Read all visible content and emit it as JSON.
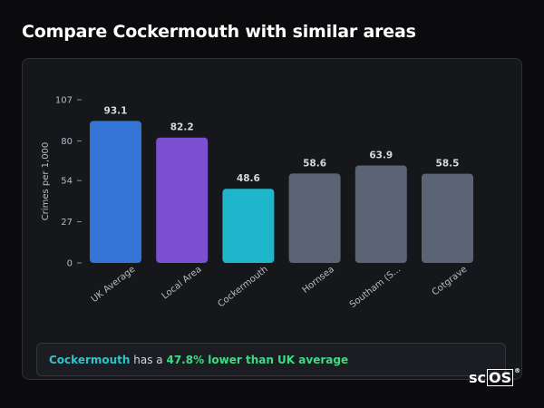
{
  "page": {
    "title": "Compare Cockermouth with similar areas"
  },
  "chart_data": {
    "type": "bar",
    "ylabel": "Crimes per 1,000",
    "xlabel": "",
    "yticks": [
      0,
      27,
      54,
      80,
      107
    ],
    "ylim": [
      0,
      107
    ],
    "grid": false,
    "categories": [
      "UK Average",
      "Local Area",
      "Cockermouth",
      "Hornsea",
      "Southam (S...",
      "Cotgrave"
    ],
    "values": [
      93.1,
      82.2,
      48.6,
      58.6,
      63.9,
      58.5
    ],
    "value_labels": [
      "93.1",
      "82.2",
      "48.6",
      "58.6",
      "63.9",
      "58.5"
    ],
    "colors": [
      "#3474d4",
      "#7b4fd0",
      "#1fb6cc",
      "#5b6475",
      "#5b6475",
      "#5b6475"
    ]
  },
  "summary": {
    "area": "Cockermouth",
    "text_mid": " has a ",
    "diff": "47.8% lower than UK average"
  },
  "logo": {
    "text_plain": "sc",
    "text_boxed": "OS",
    "mark": "®"
  }
}
